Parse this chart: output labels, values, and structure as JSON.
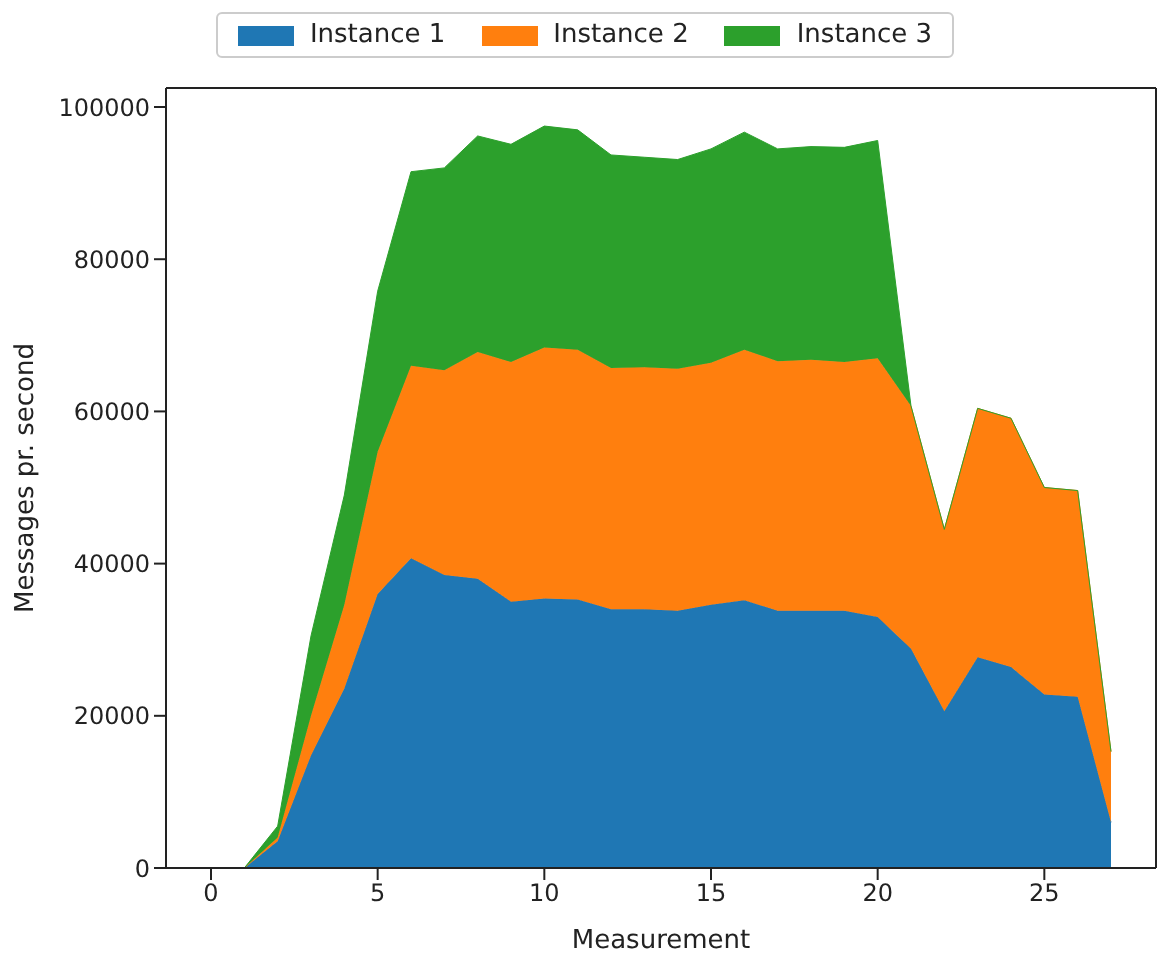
{
  "chart_data": {
    "type": "area",
    "stacked": true,
    "xlabel": "Measurement",
    "ylabel": "Messages pr. second",
    "x": [
      0,
      1,
      2,
      3,
      4,
      5,
      6,
      7,
      8,
      9,
      10,
      11,
      12,
      13,
      14,
      15,
      16,
      17,
      18,
      19,
      20,
      21,
      22,
      23,
      24,
      25,
      26,
      27
    ],
    "series": [
      {
        "name": "Instance 1",
        "color": "#1f77b4",
        "values": [
          0,
          0,
          3500,
          14800,
          23600,
          36000,
          40700,
          38500,
          38000,
          35000,
          35400,
          35300,
          34000,
          34000,
          33800,
          34600,
          35200,
          33800,
          33800,
          33800,
          33000,
          28800,
          20600,
          27700,
          26400,
          22800,
          22500,
          6000
        ]
      },
      {
        "name": "Instance 2",
        "color": "#ff7f0e",
        "values": [
          0,
          0,
          500,
          5200,
          11000,
          18700,
          25300,
          26900,
          29800,
          31500,
          33000,
          32800,
          31700,
          31800,
          31800,
          31800,
          32900,
          32800,
          33000,
          32700,
          34000,
          31900,
          23900,
          32700,
          32700,
          27200,
          27100,
          9300
        ]
      },
      {
        "name": "Instance 3",
        "color": "#2ca02c",
        "values": [
          0,
          0,
          1500,
          10500,
          14400,
          21100,
          25500,
          26600,
          28400,
          28600,
          29100,
          28900,
          28000,
          27600,
          27500,
          28100,
          28600,
          27900,
          28000,
          28200,
          28600,
          0,
          0,
          0,
          0,
          0,
          0,
          0
        ]
      }
    ],
    "xlim": [
      -1.35,
      28.35
    ],
    "xticks": [
      0,
      5,
      10,
      15,
      20,
      25
    ],
    "ylim": [
      0,
      102500
    ],
    "yticks": [
      0,
      20000,
      40000,
      60000,
      80000,
      100000
    ],
    "legend": "top",
    "grid": false
  }
}
